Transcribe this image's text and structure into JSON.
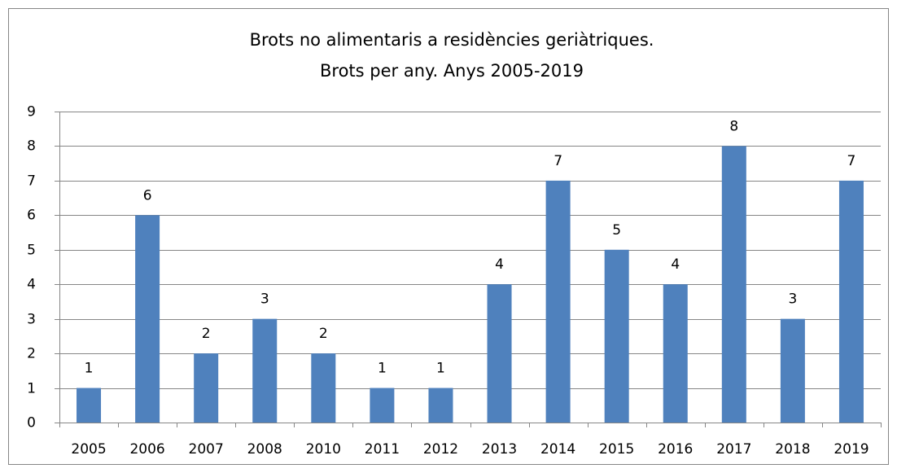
{
  "chart_data": {
    "type": "bar",
    "title": [
      "Brots no alimentaris  a residències  geriàtriques.",
      "Brots per any. Anys 2005-2019"
    ],
    "categories": [
      "2005",
      "2006",
      "2007",
      "2008",
      "2010",
      "2011",
      "2012",
      "2013",
      "2014",
      "2015",
      "2016",
      "2017",
      "2018",
      "2019"
    ],
    "values": [
      1,
      6,
      2,
      3,
      2,
      1,
      1,
      4,
      7,
      5,
      4,
      8,
      3,
      7
    ],
    "color": "#4f81bd",
    "ylim": [
      0,
      9
    ],
    "yticks": [
      0,
      1,
      2,
      3,
      4,
      5,
      6,
      7,
      8,
      9
    ],
    "grid": true
  }
}
